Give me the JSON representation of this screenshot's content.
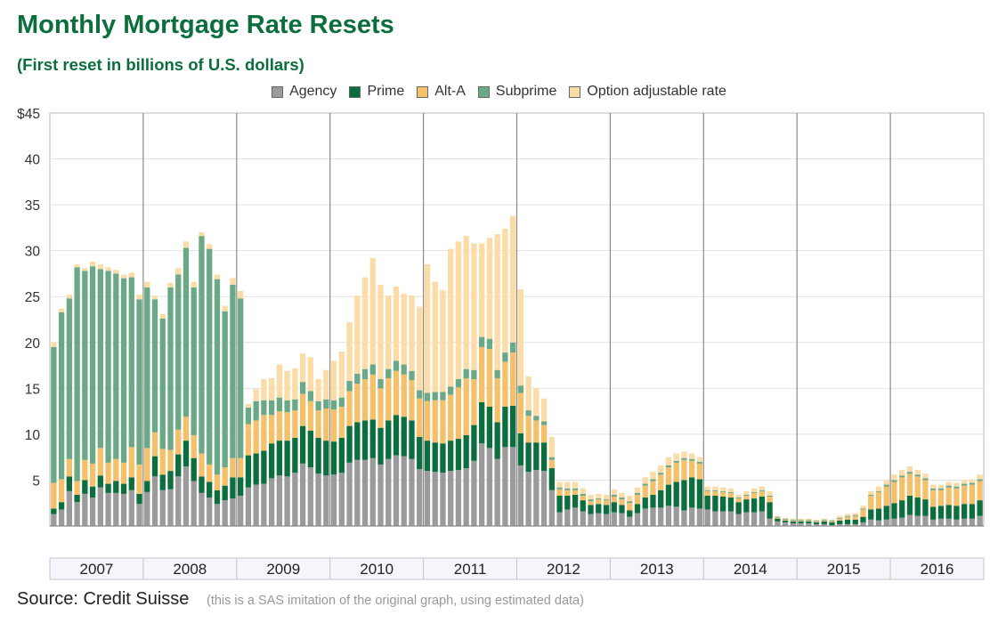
{
  "title": "Monthly Mortgage Rate Resets",
  "subtitle": "(First reset in billions of U.S. dollars)",
  "source_label": "Source: Credit Suisse",
  "note": "(this is a SAS imitation of the original graph, using estimated data)",
  "colors": {
    "title": "#0b6e3c",
    "Agency": "#9b9b9b",
    "Prime": "#0b6e3c",
    "Alt-A": "#f5c06a",
    "Subprime": "#6aa886",
    "Option adjustable rate": "#fbdba6"
  },
  "chart_data": {
    "type": "bar",
    "stacked": true,
    "ylim": [
      0,
      45
    ],
    "ytick_labels": [
      "",
      "5",
      "10",
      "15",
      "20",
      "25",
      "30",
      "35",
      "40",
      "$45"
    ],
    "yticks": [
      0,
      5,
      10,
      15,
      20,
      25,
      30,
      35,
      40,
      45
    ],
    "years": [
      "2007",
      "2008",
      "2009",
      "2010",
      "2011",
      "2012",
      "2013",
      "2014",
      "2015",
      "2016"
    ],
    "months_per_year": 12,
    "legend_position": "top-center",
    "grid": true,
    "series": [
      {
        "name": "Agency",
        "values": [
          1.3,
          1.8,
          3.8,
          2.6,
          3.5,
          3.1,
          4.2,
          3.6,
          3.6,
          3.5,
          3.9,
          2.4,
          3.7,
          5.4,
          3.9,
          4.0,
          5.4,
          6.5,
          4.9,
          3.6,
          3.1,
          2.4,
          2.8,
          3.0,
          3.3,
          4.2,
          4.5,
          4.6,
          5.2,
          5.5,
          5.4,
          5.8,
          6.8,
          6.4,
          5.7,
          5.5,
          5.6,
          5.8,
          6.9,
          7.2,
          7.2,
          7.4,
          6.7,
          7.3,
          7.7,
          7.6,
          7.3,
          6.2,
          6.0,
          5.9,
          5.8,
          6.0,
          6.1,
          6.3,
          7.1,
          9.0,
          8.5,
          7.3,
          8.6,
          8.6,
          6.6,
          5.9,
          6.1,
          6.0,
          3.9,
          1.5,
          1.8,
          2.0,
          1.6,
          1.3,
          1.4,
          1.3,
          1.5,
          1.4,
          1.0,
          1.4,
          1.9,
          2.0,
          2.0,
          2.2,
          2.1,
          1.7,
          2.0,
          1.9,
          1.8,
          1.6,
          1.6,
          1.6,
          1.3,
          1.5,
          1.5,
          1.6,
          0.8,
          0.5,
          0.4,
          0.3,
          0.3,
          0.3,
          0.2,
          0.2,
          0.1,
          0.2,
          0.2,
          0.2,
          0.4,
          0.7,
          0.6,
          0.7,
          0.8,
          0.9,
          1.2,
          1.1,
          1.1,
          0.7,
          0.8,
          0.8,
          0.7,
          0.8,
          0.8,
          1.1,
          1.7,
          1.7,
          1.8,
          1.8,
          2.1,
          1.7,
          1.2,
          1.5,
          1.4,
          1.2,
          1.0,
          1.2
        ]
      },
      {
        "name": "Prime",
        "values": [
          0.6,
          0.8,
          1.6,
          0.8,
          1.5,
          1.2,
          1.3,
          1.0,
          1.3,
          1.1,
          1.4,
          1.1,
          1.2,
          2.2,
          1.7,
          2.0,
          2.4,
          2.8,
          2.5,
          1.8,
          1.7,
          1.5,
          1.6,
          2.3,
          2.0,
          3.5,
          3.4,
          3.6,
          3.8,
          3.8,
          3.9,
          3.8,
          4.1,
          4.0,
          3.9,
          3.8,
          3.6,
          3.8,
          4.0,
          4.1,
          4.3,
          4.2,
          4.0,
          4.2,
          4.4,
          4.3,
          4.2,
          3.5,
          3.3,
          3.2,
          3.2,
          3.3,
          3.4,
          3.6,
          3.9,
          4.5,
          4.5,
          4.0,
          4.4,
          4.5,
          3.5,
          3.2,
          3.0,
          3.1,
          2.4,
          1.8,
          1.5,
          1.4,
          1.2,
          1.0,
          1.0,
          1.0,
          1.1,
          0.9,
          0.7,
          1.0,
          1.2,
          1.4,
          1.9,
          2.3,
          2.7,
          3.3,
          3.3,
          3.2,
          1.5,
          1.7,
          1.6,
          1.5,
          1.3,
          1.4,
          1.5,
          1.6,
          1.8,
          0.3,
          0.2,
          0.2,
          0.2,
          0.2,
          0.2,
          0.3,
          0.3,
          0.4,
          0.5,
          0.5,
          0.6,
          1.1,
          1.3,
          1.5,
          1.7,
          1.9,
          2.1,
          2.0,
          1.8,
          1.4,
          1.4,
          1.5,
          1.5,
          1.6,
          1.6,
          1.7,
          1.2,
          1.3,
          1.0,
          1.4,
          1.3,
          1.2,
          1.1,
          1.0,
          1.0,
          1.0,
          1.0,
          1.2
        ]
      },
      {
        "name": "Alt-A",
        "values": [
          2.8,
          2.5,
          1.9,
          1.5,
          2.2,
          2.5,
          3.0,
          2.3,
          2.4,
          2.3,
          3.3,
          3.2,
          3.6,
          2.6,
          2.8,
          2.3,
          2.7,
          2.6,
          2.5,
          2.5,
          1.9,
          1.7,
          2.0,
          2.1,
          2.1,
          3.4,
          3.6,
          3.9,
          3.1,
          3.2,
          3.1,
          3.0,
          3.5,
          3.2,
          3.0,
          3.5,
          3.5,
          3.4,
          3.8,
          4.2,
          4.5,
          4.9,
          4.3,
          4.6,
          4.8,
          4.6,
          4.4,
          4.2,
          4.3,
          4.6,
          4.7,
          5.0,
          5.6,
          6.2,
          5.0,
          6.0,
          6.3,
          4.8,
          4.9,
          5.8,
          4.4,
          2.9,
          2.4,
          1.9,
          0.9,
          0.7,
          0.6,
          0.5,
          0.5,
          0.4,
          0.5,
          0.5,
          0.6,
          0.6,
          0.8,
          1.0,
          1.3,
          1.5,
          1.7,
          1.9,
          2.1,
          2.2,
          1.8,
          1.7,
          0.5,
          0.5,
          0.5,
          0.5,
          0.4,
          0.4,
          0.6,
          0.6,
          0.6,
          0.1,
          0.1,
          0.1,
          0.1,
          0.1,
          0.1,
          0.1,
          0.1,
          0.2,
          0.3,
          0.4,
          0.8,
          1.5,
          1.8,
          2.1,
          2.3,
          2.5,
          2.4,
          2.3,
          2.1,
          1.8,
          1.7,
          1.9,
          1.9,
          2.0,
          2.1,
          2.1,
          1.8,
          1.9,
          1.7,
          1.6,
          1.3,
          1.2,
          1.1,
          1.0,
          1.0,
          1.0,
          1.0,
          1.0
        ]
      },
      {
        "name": "Subprime",
        "values": [
          14.8,
          18.2,
          17.5,
          23.3,
          20.6,
          21.5,
          19.5,
          20.9,
          20.2,
          20.1,
          18.5,
          18.0,
          17.5,
          14.5,
          14.2,
          17.7,
          16.9,
          18.4,
          16.1,
          23.7,
          23.5,
          21.3,
          17.0,
          18.9,
          17.4,
          1.8,
          2.1,
          1.6,
          1.6,
          1.5,
          1.3,
          1.2,
          1.3,
          1.1,
          1.0,
          1.0,
          1.0,
          1.0,
          1.1,
          1.1,
          1.1,
          1.1,
          1.0,
          1.0,
          1.1,
          1.1,
          1.0,
          0.9,
          0.9,
          0.9,
          0.9,
          0.9,
          0.9,
          1.0,
          1.0,
          1.1,
          1.1,
          0.9,
          1.0,
          1.1,
          0.8,
          0.6,
          0.5,
          0.4,
          0.3,
          0.2,
          0.2,
          0.2,
          0.2,
          0.2,
          0.1,
          0.1,
          0.2,
          0.2,
          0.2,
          0.2,
          0.2,
          0.2,
          0.2,
          0.2,
          0.2,
          0.2,
          0.2,
          0.2,
          0.1,
          0.1,
          0.1,
          0.1,
          0.1,
          0.1,
          0.1,
          0.1,
          0.1,
          0.1,
          0.1,
          0.1,
          0.1,
          0.1,
          0.1,
          0.1,
          0.1,
          0.1,
          0.1,
          0.1,
          0.1,
          0.1,
          0.1,
          0.2,
          0.2,
          0.2,
          0.2,
          0.2,
          0.2,
          0.2,
          0.2,
          0.2,
          0.2,
          0.2,
          0.2,
          0.2,
          0.2,
          0.3,
          0.2,
          0.2,
          0.2,
          0.2,
          0.2,
          0.2,
          0.2,
          0.2,
          0.2,
          0.1
        ]
      },
      {
        "name": "Option adjustable rate",
        "values": [
          0.5,
          0.4,
          0.4,
          0.3,
          0.3,
          0.5,
          0.5,
          0.4,
          0.4,
          0.4,
          0.5,
          0.5,
          0.6,
          0.4,
          0.5,
          0.5,
          0.7,
          0.7,
          0.6,
          0.4,
          0.5,
          0.5,
          0.6,
          0.7,
          0.8,
          0.4,
          1.3,
          2.3,
          2.4,
          3.6,
          3.2,
          3.4,
          3.1,
          3.7,
          2.4,
          3.2,
          4.3,
          5.0,
          6.4,
          8.5,
          10.0,
          11.6,
          10.3,
          8.0,
          8.1,
          7.7,
          8.2,
          9.1,
          14.0,
          12.0,
          11.1,
          15.0,
          15.0,
          14.5,
          13.8,
          10.2,
          11.0,
          14.8,
          13.5,
          13.8,
          10.5,
          3.7,
          3.0,
          2.5,
          2.2,
          0.6,
          0.7,
          0.7,
          0.6,
          0.5,
          0.5,
          0.5,
          0.6,
          0.5,
          0.6,
          0.6,
          0.7,
          0.8,
          0.8,
          0.9,
          0.8,
          0.7,
          0.6,
          0.5,
          0.4,
          0.4,
          0.4,
          0.4,
          0.3,
          0.4,
          0.4,
          0.4,
          0.5,
          0.1,
          0.1,
          0.1,
          0.1,
          0.1,
          0.1,
          0.1,
          0.1,
          0.2,
          0.2,
          0.2,
          0.3,
          0.4,
          0.5,
          0.5,
          0.6,
          0.6,
          0.6,
          0.5,
          0.5,
          0.4,
          0.4,
          0.4,
          0.4,
          0.4,
          0.4,
          0.5,
          0.4,
          0.4,
          0.4,
          0.4,
          0.3,
          0.3,
          0.3,
          0.3,
          0.3,
          0.3,
          0.3,
          0.3
        ]
      }
    ]
  }
}
